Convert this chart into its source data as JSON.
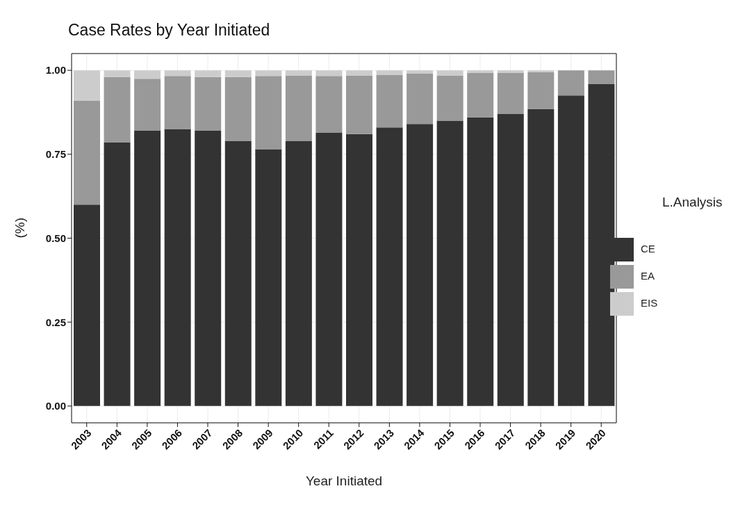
{
  "chart_data": {
    "type": "bar",
    "title": "Case Rates by Year Initiated",
    "xlabel": "Year Initiated",
    "ylabel": "(%)",
    "legend_title": "L.Analysis",
    "categories": [
      "2003",
      "2004",
      "2005",
      "2006",
      "2007",
      "2008",
      "2009",
      "2010",
      "2011",
      "2012",
      "2013",
      "2014",
      "2015",
      "2016",
      "2017",
      "2018",
      "2019",
      "2020"
    ],
    "series": [
      {
        "name": "CE",
        "color": "#333333",
        "values": [
          0.6,
          0.785,
          0.82,
          0.825,
          0.82,
          0.79,
          0.765,
          0.79,
          0.815,
          0.81,
          0.83,
          0.84,
          0.85,
          0.86,
          0.87,
          0.885,
          0.925,
          0.96
        ]
      },
      {
        "name": "EA",
        "color": "#999999",
        "values": [
          0.31,
          0.195,
          0.155,
          0.158,
          0.16,
          0.19,
          0.218,
          0.195,
          0.168,
          0.175,
          0.157,
          0.15,
          0.135,
          0.133,
          0.123,
          0.11,
          0.075,
          0.04
        ]
      },
      {
        "name": "EIS",
        "color": "#cccccc",
        "values": [
          0.09,
          0.02,
          0.025,
          0.017,
          0.02,
          0.02,
          0.017,
          0.015,
          0.017,
          0.015,
          0.013,
          0.01,
          0.015,
          0.007,
          0.007,
          0.005,
          0,
          0
        ]
      }
    ],
    "stacked": true,
    "ylim": [
      -0.05,
      1.05
    ],
    "yticks": [
      {
        "value": 0,
        "label": "0.00"
      },
      {
        "value": 0.25,
        "label": "0.25"
      },
      {
        "value": 0.5,
        "label": "0.50"
      },
      {
        "value": 0.75,
        "label": "0.75"
      },
      {
        "value": 1,
        "label": "1.00"
      }
    ],
    "grid": true,
    "legend": "right"
  }
}
